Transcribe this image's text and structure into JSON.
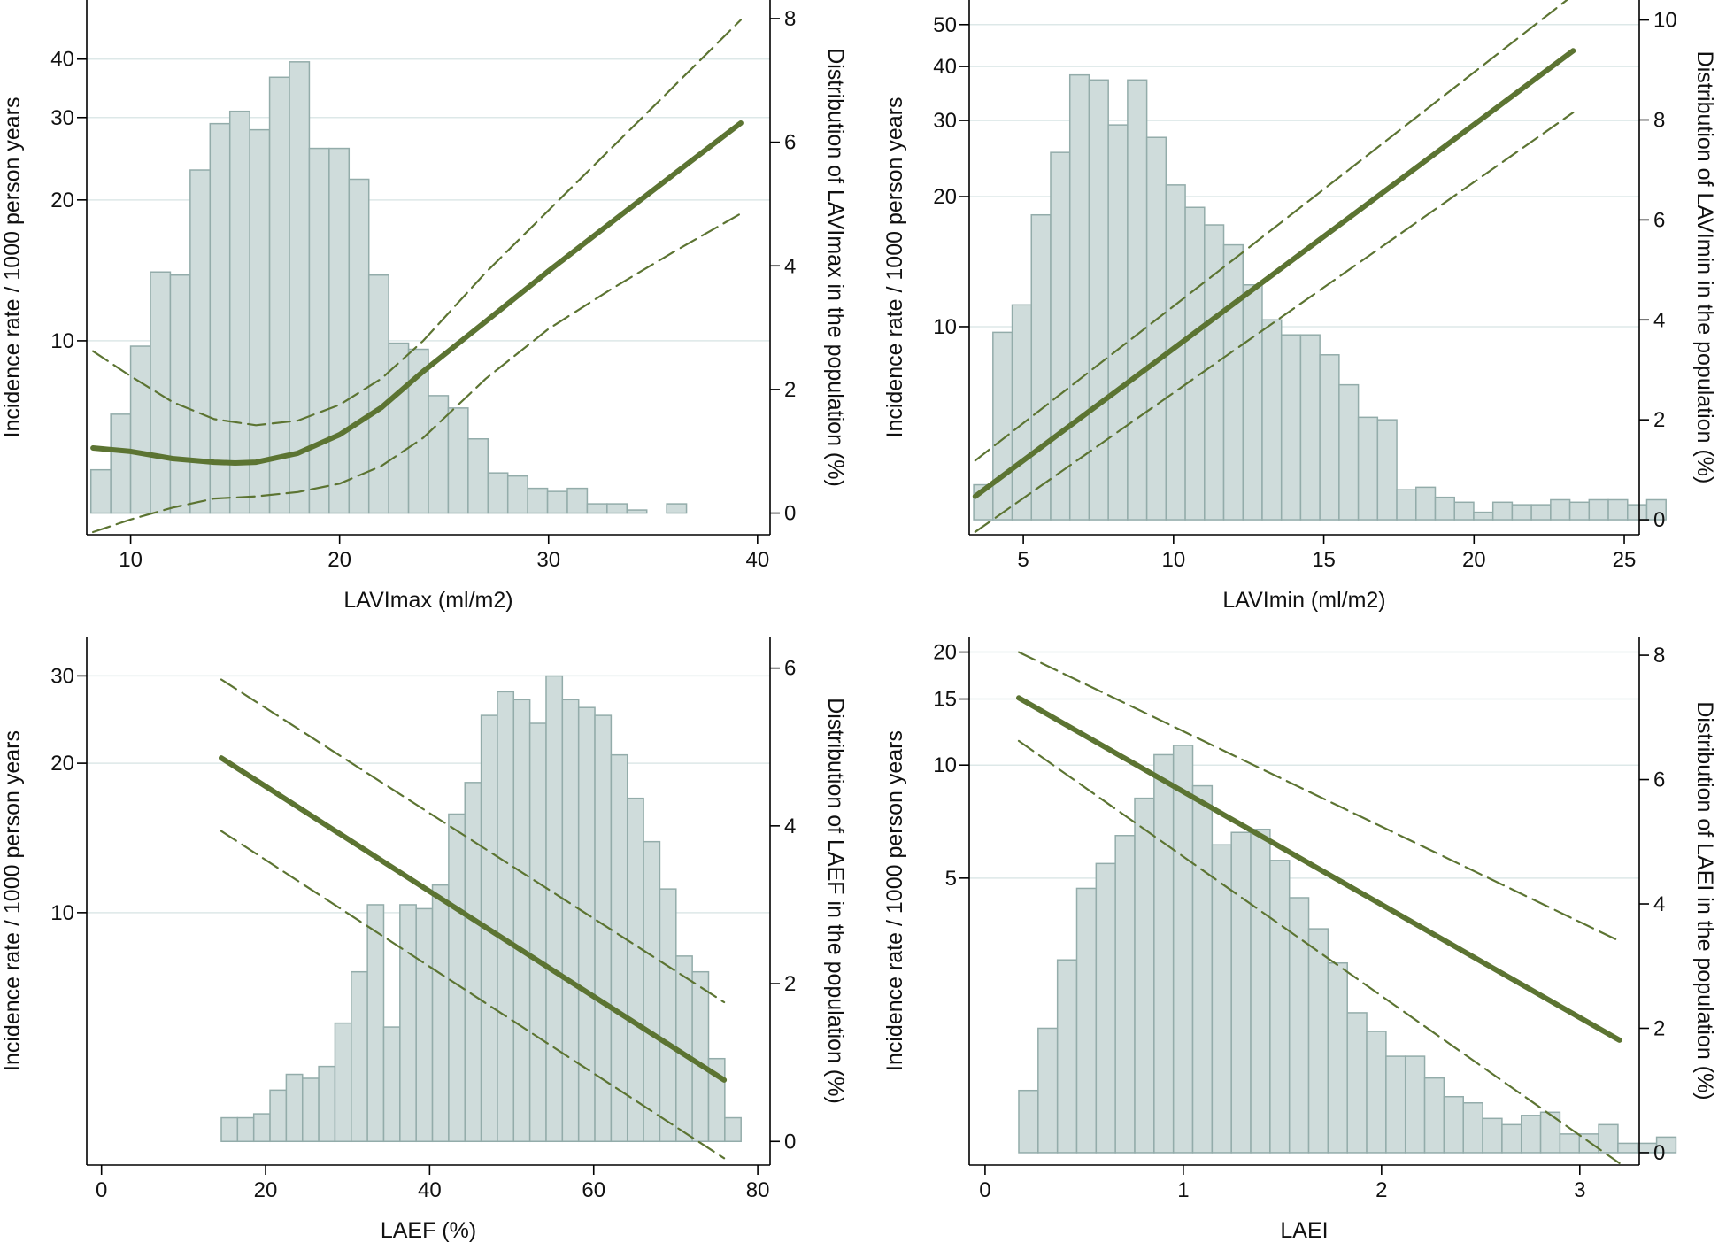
{
  "colors": {
    "bar_fill": "#cfdcdb",
    "bar_edge": "#93acaa",
    "line": "#5c7432",
    "grid": "#dde8e8",
    "axis": "#000000"
  },
  "chart_data": [
    {
      "type": "bar",
      "xlabel": "LAVImax (ml/m2)",
      "ylabel": "Incidence rate / 1000 person years",
      "y2label": "Distribution of LAVImax in the population (%)",
      "x_ticks": [
        10,
        20,
        30,
        40
      ],
      "xlim": [
        7.9,
        40.6
      ],
      "y_scale": "log",
      "y_ticks": [
        10,
        20,
        30,
        40
      ],
      "ylim": [
        3.85,
        53.5
      ],
      "y2_ticks": [
        0,
        2,
        4,
        6,
        8
      ],
      "y2lim": [
        -0.35,
        8.3
      ],
      "grid": true,
      "bins": {
        "start": 8.1,
        "width": 0.95,
        "values": [
          0.7,
          1.6,
          2.7,
          3.9,
          3.85,
          5.55,
          6.3,
          6.5,
          6.2,
          7.05,
          7.3,
          5.9,
          5.9,
          5.4,
          3.85,
          2.75,
          2.65,
          1.9,
          1.7,
          1.2,
          0.65,
          0.6,
          0.4,
          0.35,
          0.4,
          0.15,
          0.15,
          0.05,
          0.0,
          0.15
        ]
      },
      "series": [
        {
          "role": "estimate",
          "x": [
            8.2,
            10,
            12,
            14,
            15,
            16,
            18,
            20,
            22,
            24,
            27,
            30,
            33,
            36,
            39.2
          ],
          "values": [
            5.9,
            5.8,
            5.6,
            5.5,
            5.48,
            5.5,
            5.75,
            6.3,
            7.2,
            8.6,
            11.0,
            14.1,
            17.9,
            22.7,
            29.2
          ]
        },
        {
          "role": "upper",
          "x": [
            8.2,
            10,
            12,
            14,
            16,
            18,
            20,
            22,
            24,
            27,
            30,
            33,
            36,
            39.2
          ],
          "values": [
            9.5,
            8.4,
            7.4,
            6.8,
            6.6,
            6.75,
            7.3,
            8.3,
            10.0,
            14.0,
            19.0,
            25.8,
            35.0,
            48.5
          ]
        },
        {
          "role": "lower",
          "x": [
            8.2,
            10,
            12,
            14,
            16,
            18,
            20,
            22,
            24,
            27,
            30,
            33,
            36,
            39.2
          ],
          "values": [
            3.9,
            4.15,
            4.4,
            4.6,
            4.65,
            4.75,
            4.95,
            5.4,
            6.2,
            8.3,
            10.6,
            12.9,
            15.5,
            18.7
          ]
        }
      ]
    },
    {
      "type": "bar",
      "xlabel": "LAVImin (ml/m2)",
      "ylabel": "Incidence rate / 1000 person years",
      "y2label": "Distribution of LAVImin in the population (%)",
      "x_ticks": [
        5,
        10,
        15,
        20,
        25
      ],
      "xlim": [
        3.2,
        25.5
      ],
      "y_scale": "log",
      "y_ticks": [
        10,
        20,
        30,
        40,
        50
      ],
      "ylim": [
        3.3,
        57.0
      ],
      "y2_ticks": [
        0,
        2,
        4,
        6,
        8,
        10
      ],
      "y2lim": [
        -0.3,
        10.4
      ],
      "grid": true,
      "bins": {
        "start": 3.35,
        "width": 0.64,
        "values": [
          0.7,
          3.75,
          4.3,
          6.1,
          7.35,
          8.9,
          8.8,
          7.9,
          8.8,
          7.65,
          6.7,
          6.25,
          5.9,
          5.5,
          4.7,
          4.0,
          3.7,
          3.7,
          3.3,
          2.7,
          2.05,
          2.0,
          0.6,
          0.65,
          0.45,
          0.35,
          0.15,
          0.35,
          0.3,
          0.3,
          0.4,
          0.35,
          0.4,
          0.4,
          0.3,
          0.4
        ]
      },
      "series": [
        {
          "role": "estimate",
          "x": [
            3.4,
            23.3
          ],
          "values": [
            4.05,
            43.5
          ]
        },
        {
          "role": "upper",
          "x": [
            3.4,
            23.3
          ],
          "values": [
            4.9,
            58.5
          ]
        },
        {
          "role": "lower",
          "x": [
            3.4,
            23.3
          ],
          "values": [
            3.35,
            31.3
          ]
        }
      ]
    },
    {
      "type": "bar",
      "xlabel": "LAEF (%)",
      "ylabel": "Incidence rate / 1000 person years",
      "y2label": "Distribution of LAEF in the population (%)",
      "x_ticks": [
        0,
        20,
        40,
        60,
        80
      ],
      "xlim": [
        -1.8,
        81.5
      ],
      "y_scale": "log",
      "y_ticks": [
        10,
        20,
        30
      ],
      "ylim": [
        3.1,
        36.0
      ],
      "y2_ticks": [
        0,
        2,
        4,
        6
      ],
      "y2lim": [
        -0.3,
        6.4
      ],
      "grid": true,
      "bins": {
        "start": 14.6,
        "width": 1.98,
        "values": [
          0.3,
          0.3,
          0.35,
          0.65,
          0.85,
          0.8,
          0.95,
          1.5,
          2.15,
          3.0,
          1.45,
          3.0,
          2.95,
          3.25,
          4.15,
          4.55,
          5.4,
          5.7,
          5.6,
          5.3,
          5.9,
          5.6,
          5.5,
          5.4,
          4.9,
          4.35,
          3.8,
          3.2,
          2.35,
          2.15,
          1.05,
          0.3
        ]
      },
      "series": [
        {
          "role": "estimate",
          "x": [
            14.6,
            75.9
          ],
          "values": [
            20.5,
            4.6
          ]
        },
        {
          "role": "upper",
          "x": [
            14.6,
            75.9
          ],
          "values": [
            29.5,
            6.6
          ]
        },
        {
          "role": "lower",
          "x": [
            14.6,
            75.9
          ],
          "values": [
            14.6,
            3.2
          ]
        }
      ]
    },
    {
      "type": "bar",
      "xlabel": "LAEI",
      "ylabel": "Incidence rate / 1000 person years",
      "y2label": "Distribution of LAEI in the population (%)",
      "x_ticks": [
        0,
        1,
        2,
        3
      ],
      "xlim": [
        -0.08,
        3.3
      ],
      "y_scale": "log",
      "y_ticks": [
        5,
        10,
        15,
        20
      ],
      "ylim": [
        0.86,
        22.0
      ],
      "y2_ticks": [
        0,
        2,
        4,
        6,
        8
      ],
      "y2lim": [
        -0.2,
        8.3
      ],
      "grid": true,
      "bins": {
        "start": 0.17,
        "width": 0.0975,
        "values": [
          1.0,
          2.0,
          3.1,
          4.25,
          4.65,
          5.1,
          5.7,
          6.4,
          6.55,
          5.9,
          4.95,
          5.15,
          5.2,
          4.7,
          4.1,
          3.6,
          3.05,
          2.25,
          1.95,
          1.55,
          1.55,
          1.2,
          0.9,
          0.8,
          0.55,
          0.45,
          0.6,
          0.65,
          0.3,
          0.3,
          0.45,
          0.15,
          0.15,
          0.25,
          0.0
        ]
      },
      "series": [
        {
          "role": "estimate",
          "x": [
            0.17,
            3.2
          ],
          "values": [
            15.1,
            1.85
          ]
        },
        {
          "role": "upper",
          "x": [
            0.17,
            3.2
          ],
          "values": [
            20.0,
            3.4
          ]
        },
        {
          "role": "lower",
          "x": [
            0.17,
            3.2
          ],
          "values": [
            11.6,
            0.87
          ]
        }
      ]
    }
  ]
}
